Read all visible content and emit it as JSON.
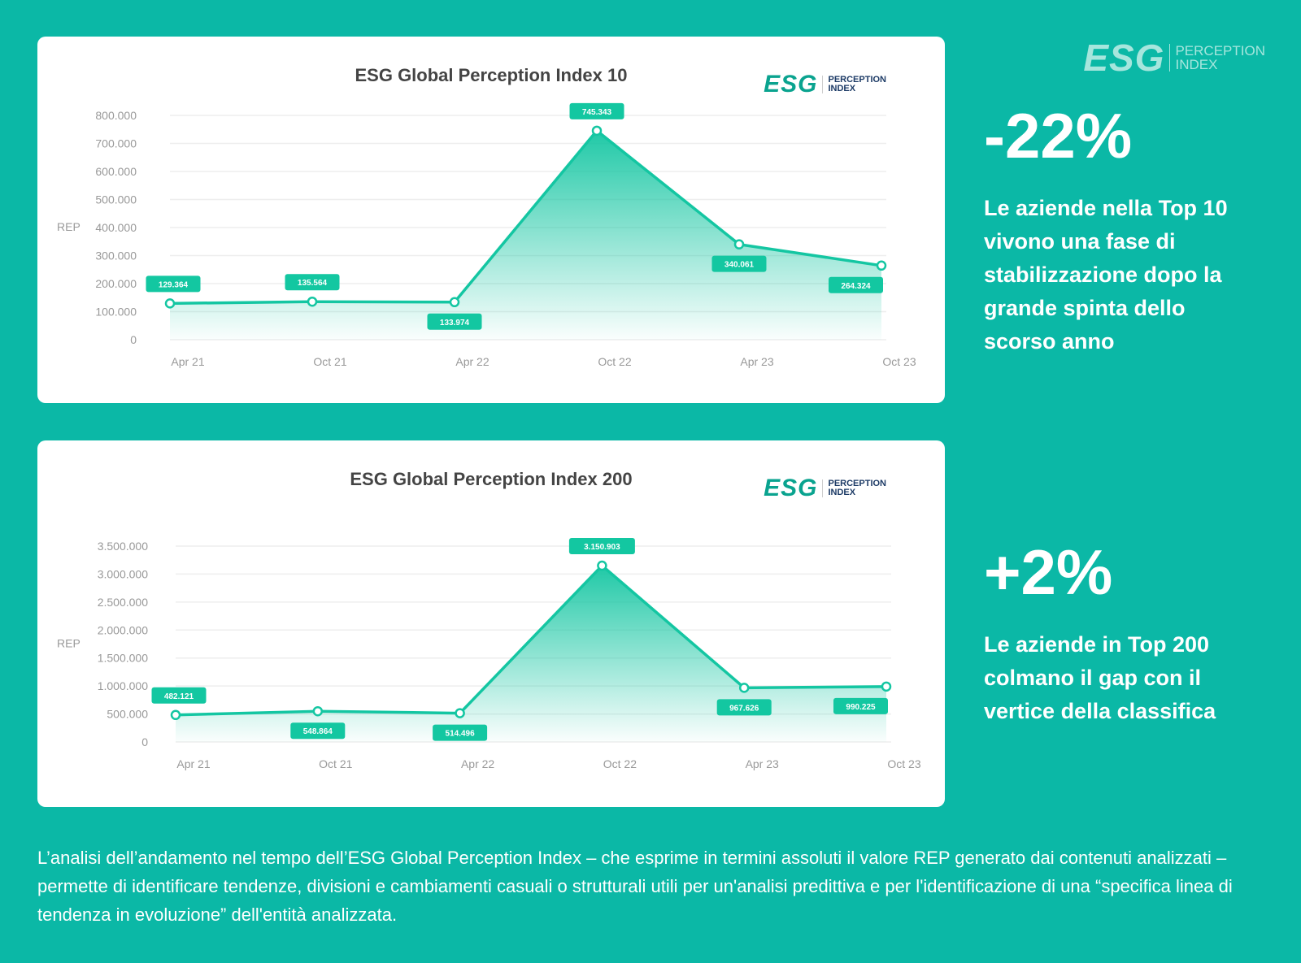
{
  "brand": {
    "logo_text": "ESG",
    "logo_sub1": "PERCEPTION",
    "logo_sub2": "INDEX"
  },
  "colors": {
    "background": "#0bb8a6",
    "line": "#14c6a2",
    "label_bg": "#13c7a1"
  },
  "chart_data": [
    {
      "type": "area",
      "title": "ESG Global Perception Index 10",
      "ylabel": "REP",
      "xlabel": "",
      "categories": [
        "Apr 21",
        "Oct 21",
        "Apr 22",
        "Oct 22",
        "Apr 23",
        "Oct 23"
      ],
      "values": [
        129364,
        135564,
        133974,
        745343,
        340061,
        264324
      ],
      "value_labels": [
        "129.364",
        "135.564",
        "133.974",
        "745.343",
        "340.061",
        "264.324"
      ],
      "label_pos": [
        "above",
        "above",
        "below",
        "above",
        "below",
        "below"
      ],
      "yticks": [
        0,
        100000,
        200000,
        300000,
        400000,
        500000,
        600000,
        700000,
        800000
      ],
      "ytick_labels": [
        "0",
        "100.000",
        "200.000",
        "300.000",
        "400.000",
        "500.000",
        "600.000",
        "700.000",
        "800.000"
      ],
      "ylim": [
        0,
        800000
      ],
      "grid": true,
      "legend": "none"
    },
    {
      "type": "area",
      "title": "ESG Global Perception Index 200",
      "ylabel": "REP",
      "xlabel": "",
      "categories": [
        "Apr 21",
        "Oct 21",
        "Apr 22",
        "Oct 22",
        "Apr 23",
        "Oct 23"
      ],
      "values": [
        482121,
        548864,
        514496,
        3150903,
        967626,
        990225
      ],
      "value_labels": [
        "482.121",
        "548.864",
        "514.496",
        "3.150.903",
        "967.626",
        "990.225"
      ],
      "label_pos": [
        "above",
        "below",
        "below",
        "above",
        "below",
        "below"
      ],
      "yticks": [
        0,
        500000,
        1000000,
        1500000,
        2000000,
        2500000,
        3000000,
        3500000
      ],
      "ytick_labels": [
        "0",
        "500.000",
        "1.000.000",
        "1.500.000",
        "2.000.000",
        "2.500.000",
        "3.000.000",
        "3.500.000"
      ],
      "ylim": [
        0,
        3500000
      ],
      "grid": true,
      "legend": "none"
    }
  ],
  "side": [
    {
      "stat": "-22%",
      "text": "Le aziende nella Top 10 vivono una fase di stabilizzazione dopo la grande spinta dello scorso anno"
    },
    {
      "stat": "+2%",
      "text": "Le aziende in Top 200 colmano il gap con il vertice della classifica"
    }
  ],
  "paragraph": "L’analisi dell’andamento nel tempo dell’ESG Global Perception Index – che esprime in termini assoluti il valore REP generato dai contenuti analizzati – permette di identificare tendenze, divisioni e cambiamenti casuali o strutturali utili per un'analisi predittiva e per l'identificazione di una “specifica linea di tendenza in evoluzione” dell'entità analizzata."
}
